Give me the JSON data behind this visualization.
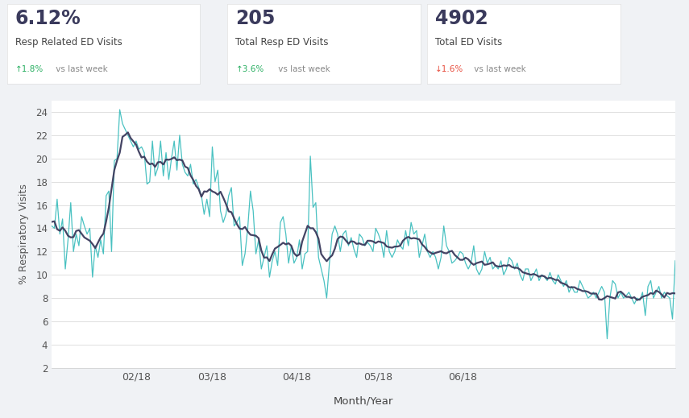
{
  "title_bar_color": "#1a2e44",
  "background_color": "#f0f2f5",
  "card_bg": "#ffffff",
  "stat1_value": "6.12%",
  "stat1_label": "Resp Related ED Visits",
  "stat1_change_up": "↑",
  "stat1_change_val": "1.8%",
  "stat1_change_rest": " vs last week",
  "stat1_change_color": "#27ae60",
  "stat2_value": "205",
  "stat2_label": "Total Resp ED Visits",
  "stat2_change_up": "↑",
  "stat2_change_val": "3.6%",
  "stat2_change_rest": " vs last week",
  "stat2_change_color": "#27ae60",
  "stat3_value": "4902",
  "stat3_label": "Total ED Visits",
  "stat3_change_up": "↓",
  "stat3_change_val": "1.6%",
  "stat3_change_rest": " vs last week",
  "stat3_change_color": "#e74c3c",
  "ylabel": "% Respiratory Visits",
  "xlabel": "Month/Year",
  "ylim": [
    2,
    25
  ],
  "yticks": [
    2,
    4,
    6,
    8,
    10,
    12,
    14,
    16,
    18,
    20,
    22,
    24
  ],
  "xtick_labels": [
    "02/18",
    "03/18",
    "04/18",
    "05/18",
    "06/18"
  ],
  "teal": "#2ab7b7",
  "dark": "#3a3a5c",
  "raw_data": [
    14.2,
    14.0,
    16.5,
    13.5,
    14.8,
    10.5,
    13.0,
    16.2,
    12.0,
    13.5,
    12.5,
    15.0,
    14.2,
    13.5,
    14.0,
    9.8,
    12.5,
    11.5,
    13.0,
    11.8,
    16.8,
    17.2,
    12.0,
    19.8,
    20.0,
    24.2,
    23.0,
    22.5,
    22.0,
    21.5,
    21.0,
    21.5,
    20.8,
    21.0,
    20.5,
    17.8,
    18.0,
    21.5,
    18.5,
    19.2,
    21.5,
    18.5,
    20.5,
    18.2,
    20.0,
    21.5,
    19.0,
    22.0,
    19.5,
    18.8,
    18.5,
    19.5,
    17.8,
    18.2,
    17.5,
    16.8,
    15.2,
    16.5,
    15.0,
    21.0,
    18.0,
    19.0,
    15.5,
    14.5,
    15.2,
    16.8,
    17.5,
    14.2,
    14.5,
    15.0,
    10.8,
    11.8,
    14.0,
    17.2,
    15.5,
    11.8,
    13.0,
    10.5,
    11.5,
    12.5,
    9.8,
    11.2,
    12.0,
    10.8,
    14.5,
    15.0,
    13.5,
    11.0,
    12.5,
    11.0,
    11.5,
    13.0,
    10.5,
    11.8,
    12.0,
    20.2,
    15.8,
    16.2,
    11.5,
    10.5,
    9.5,
    8.0,
    11.0,
    13.5,
    14.2,
    13.5,
    12.0,
    13.5,
    13.8,
    12.5,
    13.2,
    12.2,
    11.5,
    13.5,
    13.2,
    12.5,
    12.8,
    12.5,
    12.0,
    14.0,
    13.5,
    12.8,
    11.5,
    13.8,
    12.0,
    11.5,
    12.0,
    13.0,
    12.5,
    12.2,
    13.8,
    12.5,
    14.5,
    13.5,
    13.8,
    11.5,
    12.5,
    13.5,
    12.0,
    11.5,
    12.0,
    11.5,
    10.5,
    11.5,
    14.2,
    12.5,
    12.0,
    11.0,
    11.2,
    11.5,
    12.0,
    11.8,
    11.0,
    10.5,
    11.0,
    12.5,
    10.5,
    10.0,
    10.5,
    12.0,
    11.0,
    11.5,
    10.5,
    10.8,
    10.5,
    11.2,
    10.0,
    10.5,
    11.5,
    11.2,
    10.5,
    11.0,
    10.0,
    9.5,
    10.5,
    10.5,
    9.5,
    10.0,
    10.5,
    9.5,
    10.0,
    9.8,
    9.5,
    10.2,
    9.5,
    9.2,
    10.0,
    9.5,
    9.0,
    9.5,
    8.5,
    9.0,
    8.5,
    8.5,
    9.5,
    9.0,
    8.5,
    8.0,
    8.2,
    8.5,
    8.0,
    8.5,
    9.0,
    8.5,
    4.5,
    8.0,
    9.5,
    9.2,
    8.0,
    8.5,
    8.0,
    8.2,
    8.5,
    8.0,
    7.5,
    8.0,
    7.8,
    8.5,
    6.5,
    9.0,
    9.5,
    8.0,
    8.5,
    9.0,
    8.0,
    8.5,
    8.2,
    8.0,
    6.2,
    11.2
  ],
  "smooth_window": 7
}
